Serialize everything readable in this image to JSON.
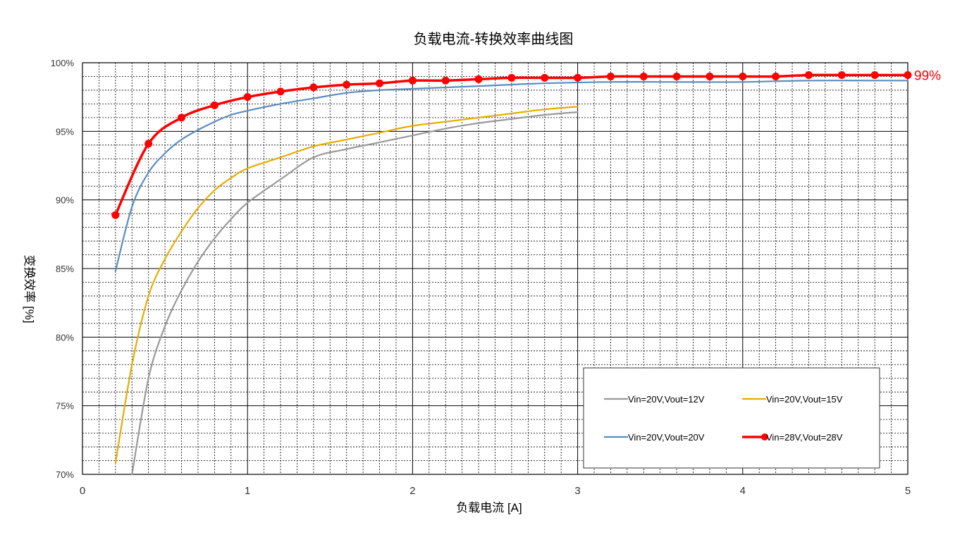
{
  "chart_data": {
    "type": "line",
    "title": "负载电流-转换效率曲线图",
    "xlabel": "负载电流 [A]",
    "ylabel": "变换效率 [%]",
    "xlim": [
      0,
      5
    ],
    "ylim": [
      70,
      100
    ],
    "x_ticks": [
      "0",
      "1",
      "2",
      "3",
      "4",
      "5"
    ],
    "y_ticks": [
      "70%",
      "75%",
      "80%",
      "85%",
      "90%",
      "95%",
      "100%"
    ],
    "grid": true,
    "legend_position": "bottom-right",
    "series": [
      {
        "name": "Vin=20V,Vout=12V",
        "color": "#999999",
        "marker": false,
        "x": [
          0.3,
          0.4,
          0.5,
          0.6,
          0.7,
          0.8,
          0.9,
          1.0,
          1.2,
          1.4,
          1.6,
          1.8,
          2.0,
          2.2,
          2.4,
          2.6,
          2.8,
          3.0
        ],
        "y": [
          70.0,
          77.0,
          80.8,
          83.4,
          85.5,
          87.2,
          88.6,
          89.8,
          91.5,
          93.1,
          93.7,
          94.2,
          94.7,
          95.2,
          95.6,
          95.9,
          96.2,
          96.4
        ]
      },
      {
        "name": "Vin=20V,Vout=15V",
        "color": "#e6ac00",
        "marker": false,
        "x": [
          0.2,
          0.3,
          0.4,
          0.5,
          0.6,
          0.7,
          0.8,
          0.9,
          1.0,
          1.2,
          1.4,
          1.6,
          1.8,
          2.0,
          2.2,
          2.4,
          2.6,
          2.8,
          3.0
        ],
        "y": [
          70.8,
          78.0,
          83.0,
          85.7,
          87.7,
          89.4,
          90.7,
          91.6,
          92.3,
          93.1,
          93.9,
          94.4,
          94.9,
          95.4,
          95.7,
          96.0,
          96.3,
          96.6,
          96.8
        ]
      },
      {
        "name": "Vin=20V,Vout=20V",
        "color": "#5b8dbf",
        "marker": false,
        "x": [
          0.2,
          0.3,
          0.4,
          0.5,
          0.6,
          0.7,
          0.8,
          0.9,
          1.0,
          1.2,
          1.4,
          1.6,
          1.8,
          2.0,
          2.4,
          2.8,
          3.2,
          3.6,
          4.0,
          4.4,
          4.8,
          5.0
        ],
        "y": [
          84.8,
          89.5,
          92.0,
          93.4,
          94.4,
          95.1,
          95.7,
          96.2,
          96.5,
          97.0,
          97.4,
          97.8,
          98.0,
          98.1,
          98.3,
          98.5,
          98.6,
          98.6,
          98.6,
          98.7,
          98.7,
          98.7
        ]
      },
      {
        "name": "Vin=28V,Vout=28V",
        "color": "#ff0000",
        "marker": true,
        "x": [
          0.2,
          0.4,
          0.6,
          0.8,
          1.0,
          1.2,
          1.4,
          1.6,
          1.8,
          2.0,
          2.2,
          2.4,
          2.6,
          2.8,
          3.0,
          3.2,
          3.4,
          3.6,
          3.8,
          4.0,
          4.2,
          4.4,
          4.6,
          4.8,
          5.0
        ],
        "y": [
          88.9,
          94.1,
          96.0,
          96.9,
          97.5,
          97.9,
          98.2,
          98.4,
          98.5,
          98.7,
          98.7,
          98.8,
          98.9,
          98.9,
          98.9,
          99.0,
          99.0,
          99.0,
          99.0,
          99.0,
          99.0,
          99.1,
          99.1,
          99.1,
          99.1
        ]
      }
    ],
    "annotations": [
      {
        "text": "99%",
        "x": 5,
        "y": 99.1,
        "color": "#ff0000"
      }
    ]
  }
}
